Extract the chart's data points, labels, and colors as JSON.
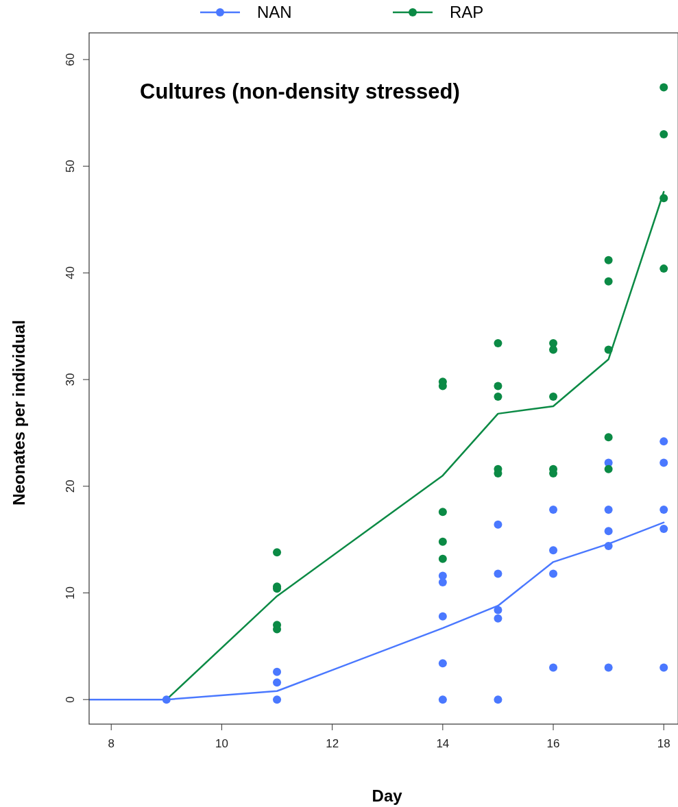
{
  "chart_data": {
    "type": "scatter",
    "title": "Cultures (non-density stressed)",
    "xlabel": "Day",
    "ylabel": "Neonates per individual",
    "xlim": [
      7.6,
      18.26
    ],
    "xticks": [
      8,
      10,
      12,
      14,
      16,
      18
    ],
    "ylim": [
      -2.3,
      62.5
    ],
    "yticks": [
      0,
      10,
      20,
      30,
      40,
      50,
      60
    ],
    "grid": false,
    "legend": "top",
    "marker": "circle",
    "series": [
      {
        "type": "line",
        "color": "#4a78ff",
        "x": [
          7.6,
          9,
          11,
          14,
          15,
          16,
          17,
          18
        ],
        "values": [
          0,
          0,
          0.8,
          6.7,
          8.8,
          12.9,
          14.6,
          16.6
        ],
        "marker": "none"
      },
      {
        "type": "line",
        "color": "#0b8a45",
        "x": [
          9,
          11,
          14,
          15,
          16,
          17,
          18
        ],
        "values": [
          0,
          9.7,
          21.0,
          26.8,
          27.5,
          31.9,
          47.6
        ],
        "marker": "none"
      },
      {
        "type": "scatter",
        "name": "NAN",
        "color": "#4a78ff",
        "x": [
          9,
          11,
          11,
          11,
          14,
          14,
          14,
          14,
          14,
          15,
          15,
          15,
          15,
          15,
          16,
          16,
          16,
          16,
          17,
          17,
          17,
          17,
          17,
          18,
          18,
          18,
          18,
          18
        ],
        "values": [
          0,
          2.6,
          1.6,
          0,
          11.6,
          11.0,
          7.8,
          3.4,
          0,
          16.4,
          11.8,
          8.4,
          7.6,
          0,
          17.8,
          14.0,
          11.8,
          3.0,
          22.2,
          17.8,
          15.8,
          14.4,
          3.0,
          24.2,
          22.2,
          17.8,
          16.0,
          3.0
        ]
      },
      {
        "type": "scatter",
        "name": "RAP",
        "color": "#0b8a45",
        "x": [
          11,
          11,
          11,
          11,
          11,
          14,
          14,
          14,
          14,
          14,
          15,
          15,
          15,
          15,
          15,
          16,
          16,
          16,
          16,
          16,
          17,
          17,
          17,
          17,
          17,
          18,
          18,
          18,
          18
        ],
        "values": [
          13.8,
          10.6,
          10.4,
          7.0,
          6.6,
          29.8,
          29.4,
          17.6,
          14.8,
          13.2,
          33.4,
          29.4,
          28.4,
          21.6,
          21.2,
          33.4,
          32.8,
          28.4,
          21.6,
          21.2,
          41.2,
          39.2,
          32.8,
          24.6,
          21.6,
          57.4,
          53.0,
          47.0,
          40.4
        ]
      }
    ]
  }
}
